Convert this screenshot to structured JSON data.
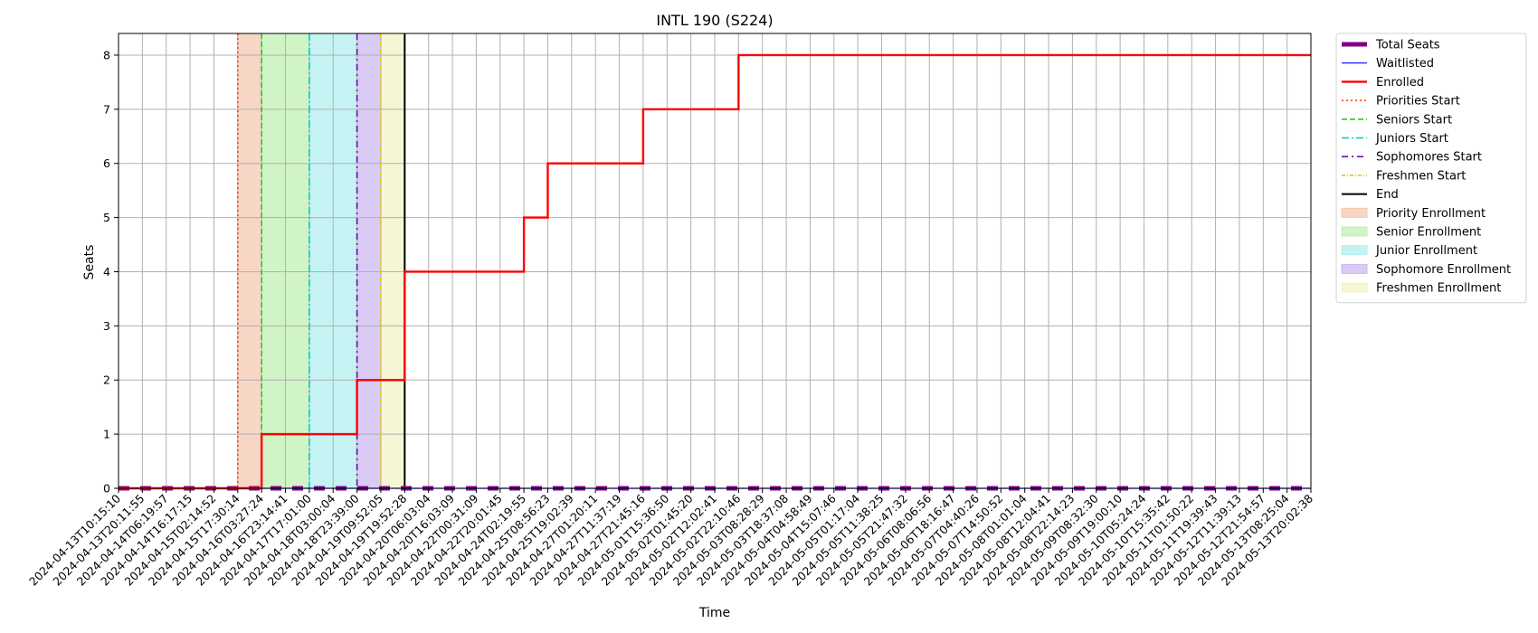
{
  "chart_data": {
    "type": "line",
    "title": "INTL 190 (S224)",
    "xlabel": "Time",
    "ylabel": "Seats",
    "ylim": [
      0,
      8.4
    ],
    "y_ticks": [
      0,
      1,
      2,
      3,
      4,
      5,
      6,
      7,
      8
    ],
    "grid": true,
    "legend_position": "outside-right",
    "x_ticks": [
      "2024-04-13T10:15:10",
      "2024-04-13T20:11:55",
      "2024-04-14T06:19:57",
      "2024-04-14T16:17:15",
      "2024-04-15T02:14:52",
      "2024-04-15T17:30:14",
      "2024-04-16T03:27:24",
      "2024-04-16T23:14:41",
      "2024-04-17T17:01:00",
      "2024-04-18T03:00:04",
      "2024-04-18T23:39:00",
      "2024-04-19T09:52:05",
      "2024-04-19T19:52:28",
      "2024-04-20T06:03:04",
      "2024-04-20T16:03:09",
      "2024-04-22T00:31:09",
      "2024-04-22T20:01:45",
      "2024-04-24T02:19:55",
      "2024-04-25T08:56:23",
      "2024-04-25T19:02:39",
      "2024-04-27T01:20:11",
      "2024-04-27T11:37:19",
      "2024-04-27T21:45:16",
      "2024-05-01T15:36:50",
      "2024-05-02T01:45:20",
      "2024-05-02T12:02:41",
      "2024-05-02T22:10:46",
      "2024-05-03T08:28:29",
      "2024-05-03T18:37:08",
      "2024-05-04T04:58:49",
      "2024-05-04T15:07:46",
      "2024-05-05T01:17:04",
      "2024-05-05T11:38:25",
      "2024-05-05T21:47:32",
      "2024-05-06T08:06:56",
      "2024-05-06T18:16:47",
      "2024-05-07T04:40:26",
      "2024-05-07T14:50:52",
      "2024-05-08T01:01:04",
      "2024-05-08T12:04:41",
      "2024-05-08T22:14:23",
      "2024-05-09T08:32:30",
      "2024-05-09T19:00:10",
      "2024-05-10T05:24:24",
      "2024-05-10T15:35:42",
      "2024-05-11T01:50:22",
      "2024-05-11T19:39:43",
      "2024-05-12T11:39:13",
      "2024-05-12T21:54:57",
      "2024-05-13T08:25:04",
      "2024-05-13T20:02:38"
    ],
    "series": [
      {
        "name": "Total Seats",
        "color": "#800080",
        "style": "dashed-thick",
        "x": [
          "2024-04-13T10:15:10",
          "2024-05-13T20:02:38"
        ],
        "values": [
          0,
          0
        ]
      },
      {
        "name": "Waitlisted",
        "color": "#0000ff",
        "style": "solid-thin",
        "x": [
          "2024-04-13T10:15:10",
          "2024-05-13T20:02:38"
        ],
        "values": [
          0,
          0
        ]
      },
      {
        "name": "Enrolled",
        "color": "#ff0000",
        "style": "step",
        "x": [
          "2024-04-13T10:15:10",
          "2024-04-16T03:27:24",
          "2024-04-18T23:39:00",
          "2024-04-19T19:52:28",
          "2024-04-19T19:52:28",
          "2024-04-24T02:19:55",
          "2024-04-25T08:56:23",
          "2024-04-27T21:45:16",
          "2024-05-02T22:10:46",
          "2024-05-13T20:02:38"
        ],
        "values": [
          0,
          1,
          2,
          3,
          4,
          5,
          6,
          7,
          8,
          8
        ]
      }
    ],
    "markers": [
      {
        "name": "Priorities Start",
        "x": "2024-04-15T17:30:14",
        "color": "#ff4500",
        "style": "dotted"
      },
      {
        "name": "Seniors Start",
        "x": "2024-04-16T03:27:24",
        "color": "#22cc22",
        "style": "dashed"
      },
      {
        "name": "Juniors Start",
        "x": "2024-04-17T17:01:00",
        "color": "#00cccc",
        "style": "dashdot"
      },
      {
        "name": "Sophomores Start",
        "x": "2024-04-18T23:39:00",
        "color": "#6a0dad",
        "style": "dashdotdot"
      },
      {
        "name": "Freshmen Start",
        "x": "2024-04-19T09:52:05",
        "color": "#e8c800",
        "style": "dashdot-fine"
      },
      {
        "name": "End",
        "x": "2024-04-19T19:52:28",
        "color": "#000000",
        "style": "solid"
      }
    ],
    "spans": [
      {
        "name": "Priority Enrollment",
        "from": "2024-04-15T17:30:14",
        "to": "2024-04-16T03:27:24",
        "color": "#f5c6ae"
      },
      {
        "name": "Senior Enrollment",
        "from": "2024-04-16T03:27:24",
        "to": "2024-04-17T17:01:00",
        "color": "#bff0b0"
      },
      {
        "name": "Junior Enrollment",
        "from": "2024-04-17T17:01:00",
        "to": "2024-04-18T23:39:00",
        "color": "#aeeeee"
      },
      {
        "name": "Sophomore Enrollment",
        "from": "2024-04-18T23:39:00",
        "to": "2024-04-19T09:52:05",
        "color": "#cbb7ee"
      },
      {
        "name": "Freshmen Enrollment",
        "from": "2024-04-19T09:52:05",
        "to": "2024-04-19T19:52:28",
        "color": "#f3f3c4"
      }
    ],
    "legend": [
      "Total Seats",
      "Waitlisted",
      "Enrolled",
      "Priorities Start",
      "Seniors Start",
      "Juniors Start",
      "Sophomores Start",
      "Freshmen Start",
      "End",
      "Priority Enrollment",
      "Senior Enrollment",
      "Junior Enrollment",
      "Sophomore Enrollment",
      "Freshmen Enrollment"
    ]
  }
}
